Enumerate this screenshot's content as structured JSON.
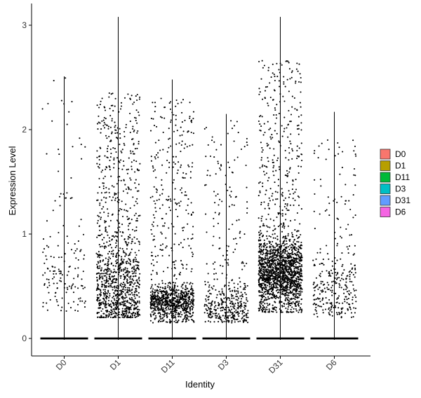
{
  "chart_data": {
    "type": "violin",
    "xlabel": "Identity",
    "ylabel": "Expression Level",
    "ylim": [
      0,
      3
    ],
    "y_ticks": [
      0,
      1,
      2,
      3
    ],
    "categories": [
      "D0",
      "D1",
      "D11",
      "D3",
      "D31",
      "D6"
    ],
    "violin_max": [
      2.51,
      3.08,
      2.48,
      2.15,
      3.08,
      2.17
    ],
    "zero_points": "all groups have a dense band of cells at expression 0",
    "point_counts": [
      160,
      1150,
      1000,
      450,
      1900,
      320
    ],
    "legend": {
      "position": "right",
      "entries": [
        {
          "label": "D0",
          "color": "#F8766D"
        },
        {
          "label": "D1",
          "color": "#B79F00"
        },
        {
          "label": "D11",
          "color": "#00BA38"
        },
        {
          "label": "D3",
          "color": "#00BFC4"
        },
        {
          "label": "D31",
          "color": "#619CFF"
        },
        {
          "label": "D6",
          "color": "#F564E3"
        }
      ]
    },
    "grid": false
  }
}
